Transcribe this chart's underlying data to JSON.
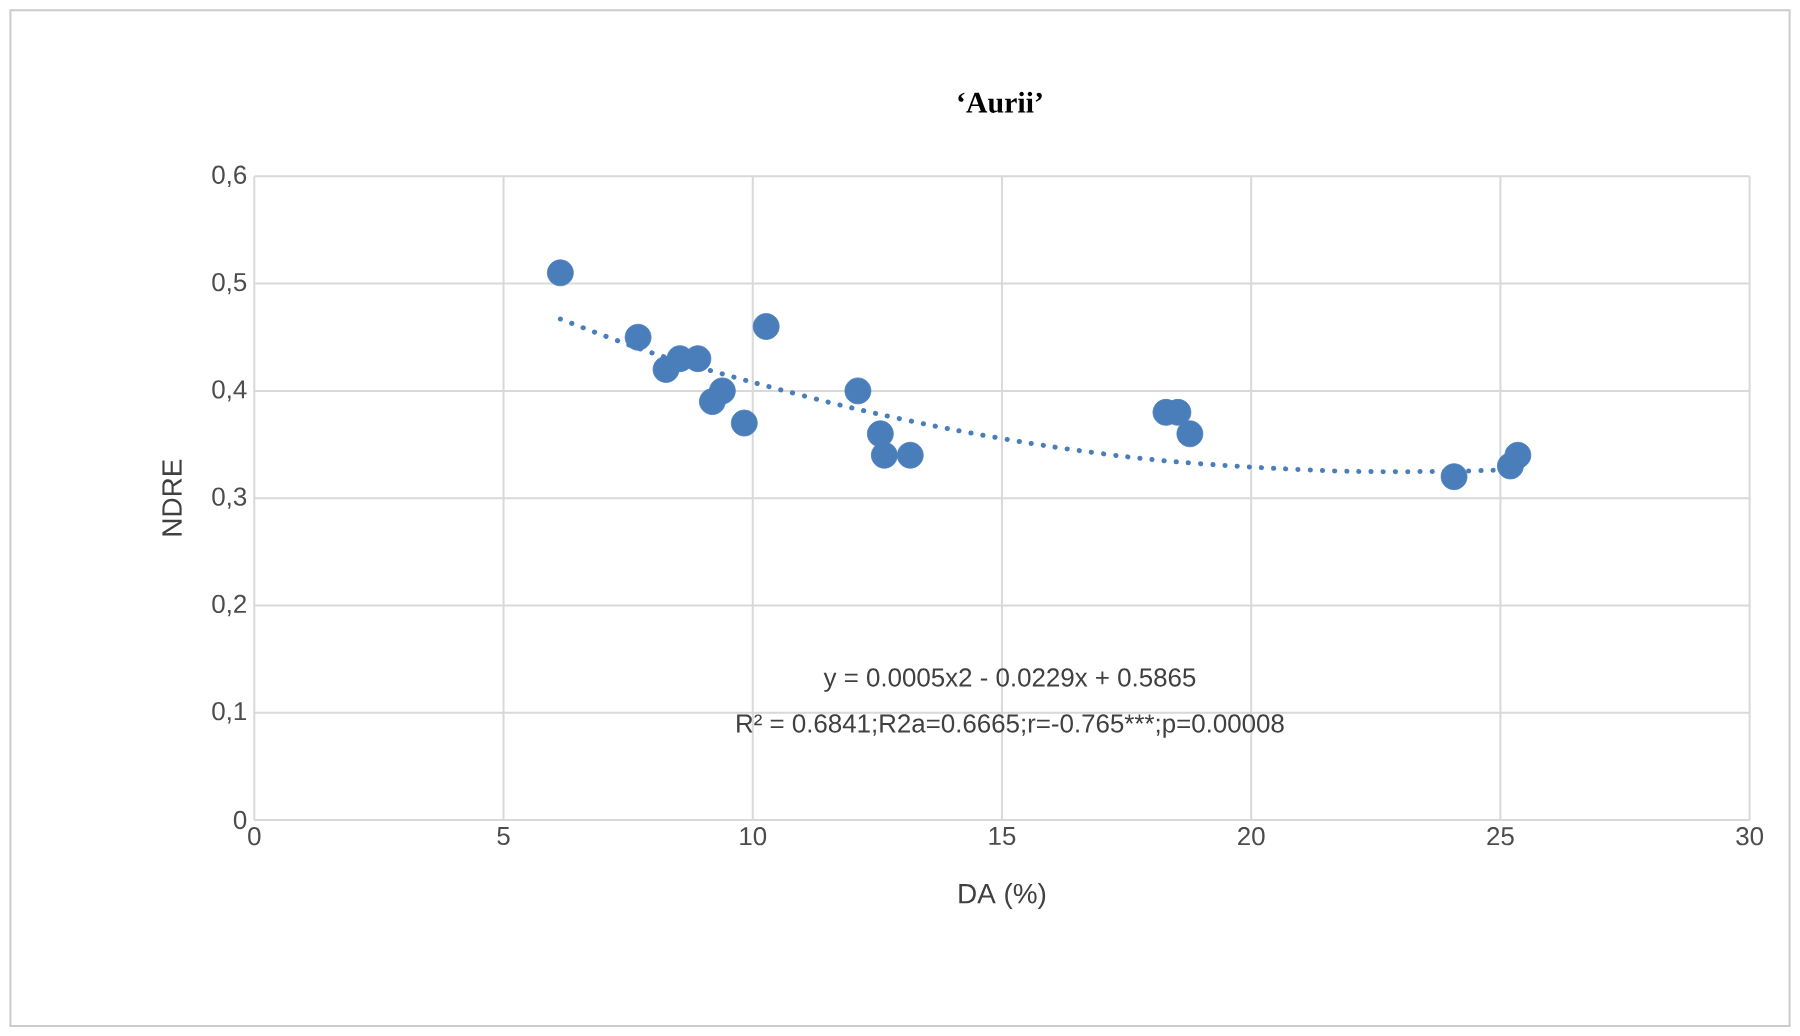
{
  "chart_data": {
    "type": "scatter",
    "title": "‘Aurii’",
    "xlabel": "DA (%)",
    "ylabel": "NDRE",
    "annotations": [
      "y = 0.0005x2 - 0.0229x + 0.5865",
      "R² = 0.6841;R2a=0.6665;r=-0.765***;p=0.00008"
    ],
    "x": [
      6.14,
      7.7,
      8.26,
      8.54,
      8.9,
      9.19,
      9.39,
      9.83,
      10.27,
      12.11,
      12.56,
      12.64,
      13.16,
      18.29,
      18.53,
      18.77,
      24.07,
      25.2,
      25.35
    ],
    "series": [
      {
        "color": "#4a7ebb",
        "values": [
          0.51,
          0.45,
          0.42,
          0.43,
          0.43,
          0.39,
          0.4,
          0.37,
          0.46,
          0.4,
          0.36,
          0.34,
          0.34,
          0.38,
          0.38,
          0.36,
          0.32,
          0.33,
          0.34
        ]
      },
      {
        "type": "line",
        "line_style": "dotted",
        "marker": "none",
        "color": "#4a7ebb",
        "x": [
          6.14,
          8,
          10,
          12,
          14,
          16,
          18,
          20,
          22,
          24,
          25.4
        ],
        "values": [
          0.467,
          0.435,
          0.408,
          0.384,
          0.364,
          0.348,
          0.336,
          0.329,
          0.325,
          0.325,
          0.327
        ]
      }
    ],
    "xlim": [
      0,
      30
    ],
    "ylim": [
      0,
      0.6
    ],
    "xticks": [
      0,
      5,
      10,
      15,
      20,
      25,
      30
    ],
    "yticks": [
      {
        "value": 0,
        "label": "0"
      },
      {
        "value": 0.1,
        "label": "0,1"
      },
      {
        "value": 0.2,
        "label": "0,2"
      },
      {
        "value": 0.3,
        "label": "0,3"
      },
      {
        "value": 0.4,
        "label": "0,4"
      },
      {
        "value": 0.5,
        "label": "0,5"
      },
      {
        "value": 0.6,
        "label": "0,6"
      }
    ],
    "grid": true,
    "marker": "circle"
  }
}
